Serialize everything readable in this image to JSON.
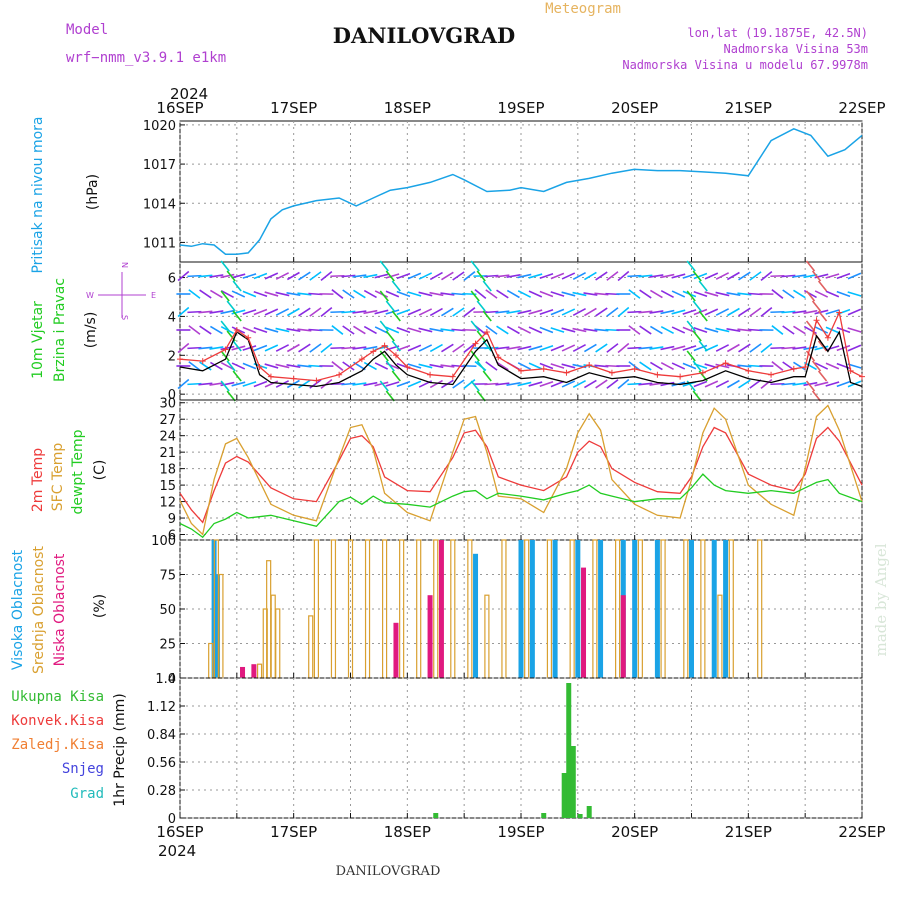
{
  "header": {
    "model_label": "Model",
    "model_name": "wrf−nmm_v3.9.1  e1km",
    "station": "DANILOVGRAD",
    "product": "Meteogram",
    "location": "lon,lat (19.1875E, 42.5N)",
    "altitude": "Nadmorska Visina 53m",
    "model_altitude": "Nadmorska Visina u modelu 67.9978m"
  },
  "footer": {
    "station": "DANILOVGRAD",
    "credit": "made by Angel"
  },
  "colors": {
    "pressure": "#1aa3e6",
    "wind_label": "#22cc22",
    "temp": "#ee3b3b",
    "sfc_temp": "#d9a030",
    "dewpt": "#22cc22",
    "cloud_high": "#1aa3e6",
    "cloud_mid": "#d9a030",
    "cloud_low": "#e0197f",
    "rain_total": "#33bb33",
    "rain_conv": "#ee3b3b",
    "rain_strat": "#f07f33",
    "snow": "#4444dd",
    "hail": "#22bbbb",
    "compass": "#b040d0",
    "wind_speed": "#000000",
    "gust": "#ee3b3b"
  },
  "time_axis": {
    "year_top": "2024",
    "year_bottom": "2024",
    "ticks": [
      "16SEP",
      "17SEP",
      "18SEP",
      "19SEP",
      "20SEP",
      "21SEP",
      "22SEP"
    ]
  },
  "compass": {
    "w": "W",
    "e": "E",
    "n": "N",
    "s": "S"
  },
  "chart_data": [
    {
      "type": "line",
      "name": "pressure",
      "ylabel": [
        "Pritisak na nivou mora",
        "(hPa)"
      ],
      "yticks": [
        "1011",
        "1014",
        "1017",
        "1020"
      ],
      "ylim": [
        1009.5,
        1020.3
      ],
      "x": [
        0,
        0.1,
        0.2,
        0.3,
        0.4,
        0.5,
        0.6,
        0.7,
        0.8,
        0.9,
        1.0,
        1.2,
        1.4,
        1.55,
        1.7,
        1.85,
        2.0,
        2.2,
        2.4,
        2.5,
        2.7,
        2.9,
        3.0,
        3.2,
        3.4,
        3.6,
        3.8,
        4.0,
        4.2,
        4.4,
        4.6,
        4.8,
        5.0,
        5.2,
        5.4,
        5.55,
        5.7,
        5.85,
        6.0
      ],
      "series": [
        {
          "values": [
            1010.8,
            1010.7,
            1010.9,
            1010.8,
            1010.1,
            1010.1,
            1010.2,
            1011.2,
            1012.8,
            1013.5,
            1013.8,
            1014.2,
            1014.4,
            1013.8,
            1014.4,
            1015.0,
            1015.2,
            1015.6,
            1016.2,
            1015.8,
            1014.9,
            1015.0,
            1015.2,
            1014.9,
            1015.6,
            1015.9,
            1016.3,
            1016.6,
            1016.5,
            1016.5,
            1016.4,
            1016.3,
            1016.1,
            1018.8,
            1019.7,
            1019.2,
            1017.6,
            1018.1,
            1019.2
          ]
        }
      ]
    },
    {
      "type": "line",
      "name": "wind",
      "ylabel": [
        "10m Vjetar",
        "Brzina i Pravac",
        "(m/s)"
      ],
      "yticks": [
        "0",
        "2",
        "4",
        "6"
      ],
      "ylim": [
        -0.3,
        6.8
      ],
      "x": [
        0,
        0.2,
        0.4,
        0.5,
        0.6,
        0.7,
        0.8,
        1.0,
        1.2,
        1.4,
        1.6,
        1.7,
        1.8,
        1.9,
        2.0,
        2.2,
        2.4,
        2.6,
        2.7,
        2.8,
        3.0,
        3.2,
        3.4,
        3.6,
        3.8,
        4.0,
        4.2,
        4.4,
        4.6,
        4.8,
        5.0,
        5.2,
        5.4,
        5.5,
        5.6,
        5.7,
        5.8,
        5.9,
        6.0
      ],
      "series": [
        {
          "name": "speed",
          "values": [
            1.4,
            1.2,
            1.8,
            3.2,
            2.8,
            1.0,
            0.6,
            0.5,
            0.4,
            0.6,
            1.2,
            1.8,
            2.2,
            1.5,
            1.0,
            0.6,
            0.5,
            2.2,
            2.8,
            1.5,
            0.8,
            0.9,
            0.6,
            1.1,
            0.8,
            0.9,
            0.6,
            0.5,
            0.7,
            1.2,
            0.8,
            0.6,
            0.9,
            0.9,
            3.0,
            2.2,
            3.2,
            0.6,
            0.4
          ]
        },
        {
          "name": "gust",
          "values": [
            1.8,
            1.7,
            2.3,
            3.3,
            2.9,
            1.4,
            0.9,
            0.8,
            0.7,
            1.0,
            1.8,
            2.2,
            2.5,
            2.0,
            1.4,
            1.0,
            0.9,
            2.6,
            3.2,
            1.9,
            1.2,
            1.3,
            1.1,
            1.5,
            1.1,
            1.3,
            1.0,
            0.9,
            1.1,
            1.6,
            1.2,
            1.0,
            1.3,
            1.4,
            3.8,
            2.9,
            4.2,
            1.2,
            0.9
          ]
        }
      ]
    },
    {
      "type": "line",
      "name": "temperature",
      "ylabel": [
        "2m Temp",
        "SFC Temp",
        "dewpt Temp",
        "(C)"
      ],
      "yticks": [
        "6",
        "9",
        "12",
        "15",
        "18",
        "21",
        "24",
        "27",
        "30"
      ],
      "ylim": [
        5,
        30.5
      ],
      "x": [
        0,
        0.1,
        0.2,
        0.3,
        0.4,
        0.5,
        0.6,
        0.8,
        1.0,
        1.2,
        1.4,
        1.5,
        1.6,
        1.7,
        1.8,
        2.0,
        2.2,
        2.4,
        2.5,
        2.6,
        2.7,
        2.8,
        3.0,
        3.2,
        3.4,
        3.5,
        3.6,
        3.7,
        3.8,
        4.0,
        4.2,
        4.4,
        4.5,
        4.6,
        4.7,
        4.8,
        5.0,
        5.2,
        5.4,
        5.5,
        5.6,
        5.7,
        5.8,
        6.0
      ],
      "series": [
        {
          "name": "t2m",
          "values": [
            13.5,
            10.5,
            8.2,
            14,
            19,
            20.2,
            19.2,
            14.5,
            12.5,
            12.0,
            19.5,
            23.5,
            24,
            22,
            16.5,
            14,
            13.8,
            20,
            24.5,
            25,
            22,
            16.5,
            15,
            14,
            16.5,
            21,
            23,
            22,
            18,
            15.5,
            13.8,
            13.5,
            16.5,
            22,
            25.5,
            24.5,
            17,
            15,
            14,
            17,
            23.5,
            25.5,
            23,
            15
          ]
        },
        {
          "name": "tsfc",
          "values": [
            12.2,
            8,
            6,
            16,
            22.5,
            23.5,
            20,
            11.5,
            9.5,
            8.5,
            20,
            25.5,
            26,
            21.5,
            13.5,
            10,
            8.5,
            21,
            27,
            27.5,
            21,
            13,
            12.5,
            10,
            18,
            24.5,
            28,
            25,
            16,
            11.5,
            9.5,
            9,
            16,
            24.5,
            29,
            27,
            15,
            11.5,
            9.5,
            18,
            27.5,
            29.5,
            25,
            12
          ]
        },
        {
          "name": "dewpt",
          "values": [
            8,
            7,
            5.5,
            8,
            8.8,
            10,
            9,
            9.5,
            8.5,
            7.5,
            12,
            12.8,
            11.5,
            13,
            11.8,
            11.5,
            11,
            13,
            13.8,
            14,
            12.5,
            13.5,
            13,
            12.3,
            13.5,
            14,
            15,
            13.5,
            13,
            12,
            12.5,
            12.5,
            14.5,
            17,
            15,
            14,
            13.5,
            14,
            13.5,
            14.5,
            15.5,
            16,
            13.5,
            12
          ]
        }
      ]
    },
    {
      "type": "bar",
      "name": "cloud_cover",
      "ylabel": [
        "Visoka Oblacnost",
        "Srednja Oblacnost",
        "Niska Oblacnost",
        "(%)"
      ],
      "yticks": [
        "0",
        "25",
        "50",
        "75",
        "100"
      ],
      "ylim": [
        0,
        100
      ],
      "series": [
        {
          "name": "high",
          "bars": [
            [
              0.3,
              100
            ],
            [
              0.33,
              75
            ],
            [
              2.6,
              90
            ],
            [
              3.0,
              100
            ],
            [
              3.1,
              100
            ],
            [
              3.3,
              100
            ],
            [
              3.5,
              100
            ],
            [
              3.7,
              100
            ],
            [
              3.9,
              100
            ],
            [
              4.0,
              100
            ],
            [
              4.2,
              100
            ],
            [
              4.5,
              100
            ],
            [
              4.7,
              100
            ],
            [
              4.8,
              100
            ]
          ]
        },
        {
          "name": "mid",
          "bars": [
            [
              0.27,
              25
            ],
            [
              0.32,
              100
            ],
            [
              0.36,
              75
            ],
            [
              0.7,
              10
            ],
            [
              0.75,
              50
            ],
            [
              0.78,
              85
            ],
            [
              0.82,
              60
            ],
            [
              0.86,
              50
            ],
            [
              1.15,
              45
            ],
            [
              1.2,
              100
            ],
            [
              1.35,
              100
            ],
            [
              1.5,
              100
            ],
            [
              1.65,
              100
            ],
            [
              1.8,
              100
            ],
            [
              1.95,
              100
            ],
            [
              2.1,
              100
            ],
            [
              2.25,
              100
            ],
            [
              2.4,
              100
            ],
            [
              2.55,
              100
            ],
            [
              2.7,
              60
            ],
            [
              2.85,
              100
            ],
            [
              3.05,
              100
            ],
            [
              3.25,
              100
            ],
            [
              3.45,
              100
            ],
            [
              3.65,
              100
            ],
            [
              3.85,
              100
            ],
            [
              4.05,
              100
            ],
            [
              4.25,
              100
            ],
            [
              4.45,
              100
            ],
            [
              4.6,
              100
            ],
            [
              4.75,
              60
            ],
            [
              4.85,
              100
            ],
            [
              5.1,
              100
            ]
          ]
        },
        {
          "name": "low",
          "bars": [
            [
              0.55,
              8
            ],
            [
              0.65,
              10
            ],
            [
              1.9,
              40
            ],
            [
              2.2,
              60
            ],
            [
              2.3,
              100
            ],
            [
              3.55,
              80
            ],
            [
              3.9,
              60
            ]
          ]
        }
      ]
    },
    {
      "type": "bar",
      "name": "precipitation",
      "ylabel": [
        "1hr Precip (mm)"
      ],
      "legend": [
        "Ukupna Kisa",
        "Konvek.Kisa",
        "Zaledj.Kisa",
        "Snjeg",
        "Grad"
      ],
      "yticks": [
        "0",
        "0.28",
        "0.56",
        "0.84",
        "1.12",
        "1.4"
      ],
      "ylim": [
        0,
        1.4
      ],
      "series": [
        {
          "name": "Ukupna Kisa",
          "bars": [
            [
              2.25,
              0.05
            ],
            [
              3.2,
              0.05
            ],
            [
              3.38,
              0.45
            ],
            [
              3.42,
              1.35
            ],
            [
              3.46,
              0.72
            ],
            [
              3.52,
              0.04
            ],
            [
              3.6,
              0.12
            ]
          ]
        }
      ]
    }
  ]
}
